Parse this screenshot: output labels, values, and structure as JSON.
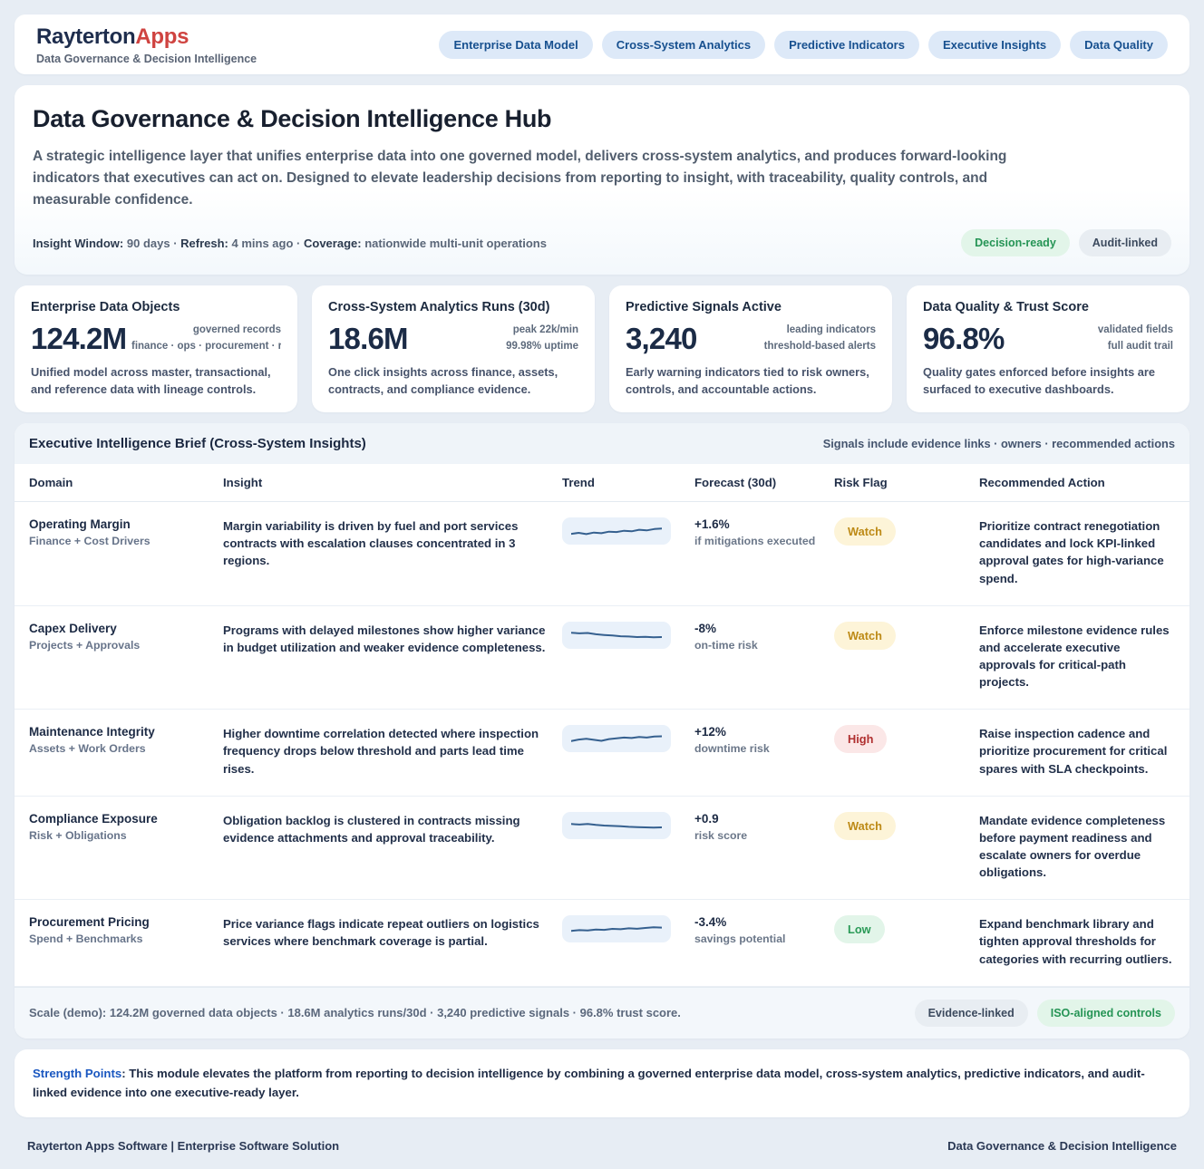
{
  "colors": {
    "accent_red": "#cf4340",
    "navy": "#1e2d4d",
    "spark_line": "#35608f",
    "spark_bg": "#e9f1fa",
    "green": "#259455",
    "amber": "#bd8a16",
    "red": "#b03030"
  },
  "brand": {
    "name_primary": "Rayterton",
    "name_accent": "Apps",
    "tagline": "Data Governance & Decision Intelligence"
  },
  "nav": {
    "items": [
      {
        "label": "Enterprise Data Model"
      },
      {
        "label": "Cross-System Analytics"
      },
      {
        "label": "Predictive Indicators"
      },
      {
        "label": "Executive Insights"
      },
      {
        "label": "Data Quality"
      }
    ]
  },
  "hero": {
    "title": "Data Governance & Decision Intelligence Hub",
    "description": "A strategic intelligence layer that unifies enterprise data into one governed model, delivers cross-system analytics, and produces forward-looking indicators that executives can act on. Designed to elevate leadership decisions from reporting to insight, with traceability, quality controls, and measurable confidence.",
    "meta": [
      {
        "label": "Insight Window:",
        "value": "90 days"
      },
      {
        "label": "Refresh:",
        "value": "4 mins ago"
      },
      {
        "label": "Coverage:",
        "value": "nationwide multi-unit operations"
      }
    ],
    "badges": [
      {
        "label": "Decision-ready",
        "tone": "green"
      },
      {
        "label": "Audit-linked",
        "tone": "gray"
      }
    ]
  },
  "stats": [
    {
      "title": "Enterprise Data Objects",
      "value": "124.2M",
      "meta_line1": "governed records",
      "meta_line2": "finance · ops · procurement · risk",
      "description": "Unified model across master, transactional, and reference data with lineage controls."
    },
    {
      "title": "Cross-System Analytics Runs (30d)",
      "value": "18.6M",
      "meta_line1": "peak 22k/min",
      "meta_line2": "99.98% uptime",
      "description": "One click insights across finance, assets, contracts, and compliance evidence."
    },
    {
      "title": "Predictive Signals Active",
      "value": "3,240",
      "meta_line1": "leading indicators",
      "meta_line2": "threshold-based alerts",
      "description": "Early warning indicators tied to risk owners, controls, and accountable actions."
    },
    {
      "title": "Data Quality & Trust Score",
      "value": "96.8%",
      "meta_line1": "validated fields",
      "meta_line2": "full audit trail",
      "description": "Quality gates enforced before insights are surfaced to executive dashboards."
    }
  ],
  "brief": {
    "title": "Executive Intelligence Brief (Cross-System Insights)",
    "subtitle": "Signals include evidence links · owners · recommended actions",
    "columns": [
      {
        "label": "Domain"
      },
      {
        "label": "Insight"
      },
      {
        "label": "Trend"
      },
      {
        "label": "Forecast (30d)"
      },
      {
        "label": "Risk Flag"
      },
      {
        "label": "Recommended Action"
      }
    ],
    "rows": [
      {
        "domain": "Operating Margin",
        "domain_sub": "Finance + Cost Drivers",
        "insight": "Margin variability is driven by fuel and port services contracts with escalation clauses concentrated in 3 regions.",
        "trend": [
          28,
          36,
          26,
          38,
          33,
          45,
          42,
          52,
          48,
          60,
          55,
          66,
          70
        ],
        "forecast_value": "+1.6%",
        "forecast_label": "if mitigations executed",
        "risk": "Watch",
        "risk_tone": "watch",
        "action": "Prioritize contract renegotiation candidates and lock KPI-linked approval gates for high-variance spend."
      },
      {
        "domain": "Capex Delivery",
        "domain_sub": "Projects + Approvals",
        "insight": "Programs with delayed milestones show higher variance in budget utilization and weaker evidence completeness.",
        "trend": [
          70,
          65,
          68,
          58,
          52,
          48,
          42,
          40,
          36,
          38,
          34,
          36
        ],
        "forecast_value": "-8%",
        "forecast_label": "on-time risk",
        "risk": "Watch",
        "risk_tone": "watch",
        "action": "Enforce milestone evidence rules and accelerate executive approvals for critical-path projects."
      },
      {
        "domain": "Maintenance Integrity",
        "domain_sub": "Assets + Work Orders",
        "insight": "Higher downtime correlation detected where inspection frequency drops below threshold and parts lead time rises.",
        "trend": [
          30,
          42,
          48,
          40,
          32,
          46,
          52,
          58,
          54,
          62,
          58,
          66,
          68
        ],
        "forecast_value": "+12%",
        "forecast_label": "downtime risk",
        "risk": "High",
        "risk_tone": "high",
        "action": "Raise inspection cadence and prioritize procurement for critical spares with SLA checkpoints."
      },
      {
        "domain": "Compliance Exposure",
        "domain_sub": "Risk + Obligations",
        "insight": "Obligation backlog is clustered in contracts missing evidence attachments and approval traceability.",
        "trend": [
          62,
          58,
          63,
          55,
          50,
          47,
          44,
          40,
          38,
          36,
          34,
          36
        ],
        "forecast_value": "+0.9",
        "forecast_label": "risk score",
        "risk": "Watch",
        "risk_tone": "watch",
        "action": "Mandate evidence completeness before payment readiness and escalate owners for overdue obligations."
      },
      {
        "domain": "Procurement Pricing",
        "domain_sub": "Spend + Benchmarks",
        "insight": "Price variance flags indicate repeat outliers on logistics services where benchmark coverage is partial.",
        "trend": [
          34,
          40,
          37,
          45,
          42,
          50,
          47,
          54,
          51,
          57,
          62,
          60
        ],
        "forecast_value": "-3.4%",
        "forecast_label": "savings potential",
        "risk": "Low",
        "risk_tone": "low",
        "action": "Expand benchmark library and tighten approval thresholds for categories with recurring outliers."
      }
    ],
    "footer": {
      "scale_text": "Scale (demo): 124.2M governed data objects · 18.6M analytics runs/30d · 3,240 predictive signals · 96.8% trust score.",
      "badges": [
        {
          "label": "Evidence-linked",
          "tone": "gray"
        },
        {
          "label": "ISO-aligned controls",
          "tone": "green"
        }
      ]
    }
  },
  "strength": {
    "label": "Strength Points",
    "text": ": This module elevates the platform from reporting to decision intelligence by combining a governed enterprise data model, cross-system analytics, predictive indicators, and audit-linked evidence into one executive-ready layer."
  },
  "page_footer": {
    "left": "Rayterton Apps Software | Enterprise Software Solution",
    "right": "Data Governance & Decision Intelligence"
  }
}
